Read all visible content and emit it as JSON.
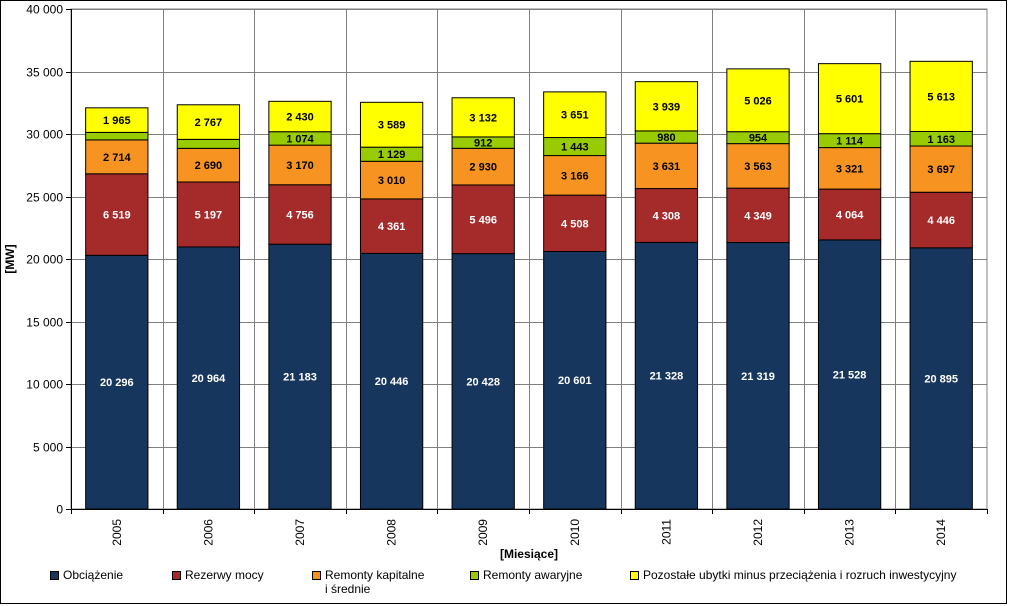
{
  "chart_data": {
    "type": "bar",
    "stacked": true,
    "categories": [
      "2005",
      "2006",
      "2007",
      "2008",
      "2009",
      "2010",
      "2011",
      "2012",
      "2013",
      "2014"
    ],
    "series": [
      {
        "name": "Obciążenie",
        "color": "#17365d",
        "values": [
          20296,
          20964,
          21183,
          20446,
          20428,
          20601,
          21328,
          21319,
          21528,
          20895
        ],
        "labels": [
          "20 296",
          "20 964",
          "21 183",
          "20 446",
          "20 428",
          "20 601",
          "21 328",
          "21 319",
          "21 528",
          "20 895"
        ]
      },
      {
        "name": "Rezerwy mocy",
        "color": "#a52a2a",
        "values": [
          6519,
          5197,
          4756,
          4361,
          5496,
          4508,
          4308,
          4349,
          4064,
          4446
        ],
        "labels": [
          "6 519",
          "5 197",
          "4 756",
          "4 361",
          "5 496",
          "4 508",
          "4 308",
          "4 349",
          "4 064",
          "4 446"
        ]
      },
      {
        "name": "Remonty kapitalne\ni średnie",
        "color": "#f79321",
        "values": [
          2714,
          2690,
          3170,
          3010,
          2930,
          3166,
          3631,
          3563,
          3321,
          3697
        ],
        "labels": [
          "2 714",
          "2 690",
          "3 170",
          "3 010",
          "2 930",
          "3 166",
          "3 631",
          "3 563",
          "3 321",
          "3 697"
        ]
      },
      {
        "name": "Remonty awaryjne",
        "color": "#99cc00",
        "values": [
          600,
          720,
          1074,
          1129,
          912,
          1443,
          980,
          954,
          1114,
          1163
        ],
        "labels": [
          "",
          "",
          "1 074",
          "1 129",
          "912",
          "1 443",
          "980",
          "954",
          "1 114",
          "1 163"
        ]
      },
      {
        "name": "Pozostałe ubytki minus przeciążenia i rozruch inwestycyjny",
        "color": "#ffff00",
        "values": [
          1965,
          2767,
          2430,
          3589,
          3132,
          3651,
          3939,
          5026,
          5601,
          5613
        ],
        "labels": [
          "1 965",
          "2 767",
          "2 430",
          "3 589",
          "3 132",
          "3 651",
          "3 939",
          "5 026",
          "5 601",
          "5 613"
        ]
      }
    ],
    "ylim": [
      0,
      40000
    ],
    "yticks": [
      0,
      5000,
      10000,
      15000,
      20000,
      25000,
      30000,
      35000,
      40000
    ],
    "ytick_labels": [
      "0",
      "5 000",
      "10 000",
      "15 000",
      "20 000",
      "25 000",
      "30 000",
      "35 000",
      "40 000"
    ],
    "ylabel": "[MW]",
    "xlabel": "[Miesiące]",
    "grid": true,
    "legend_position": "bottom",
    "label_colors": [
      "#ffffff",
      "#ffffff",
      "#000000",
      "#000000",
      "#000000"
    ]
  }
}
